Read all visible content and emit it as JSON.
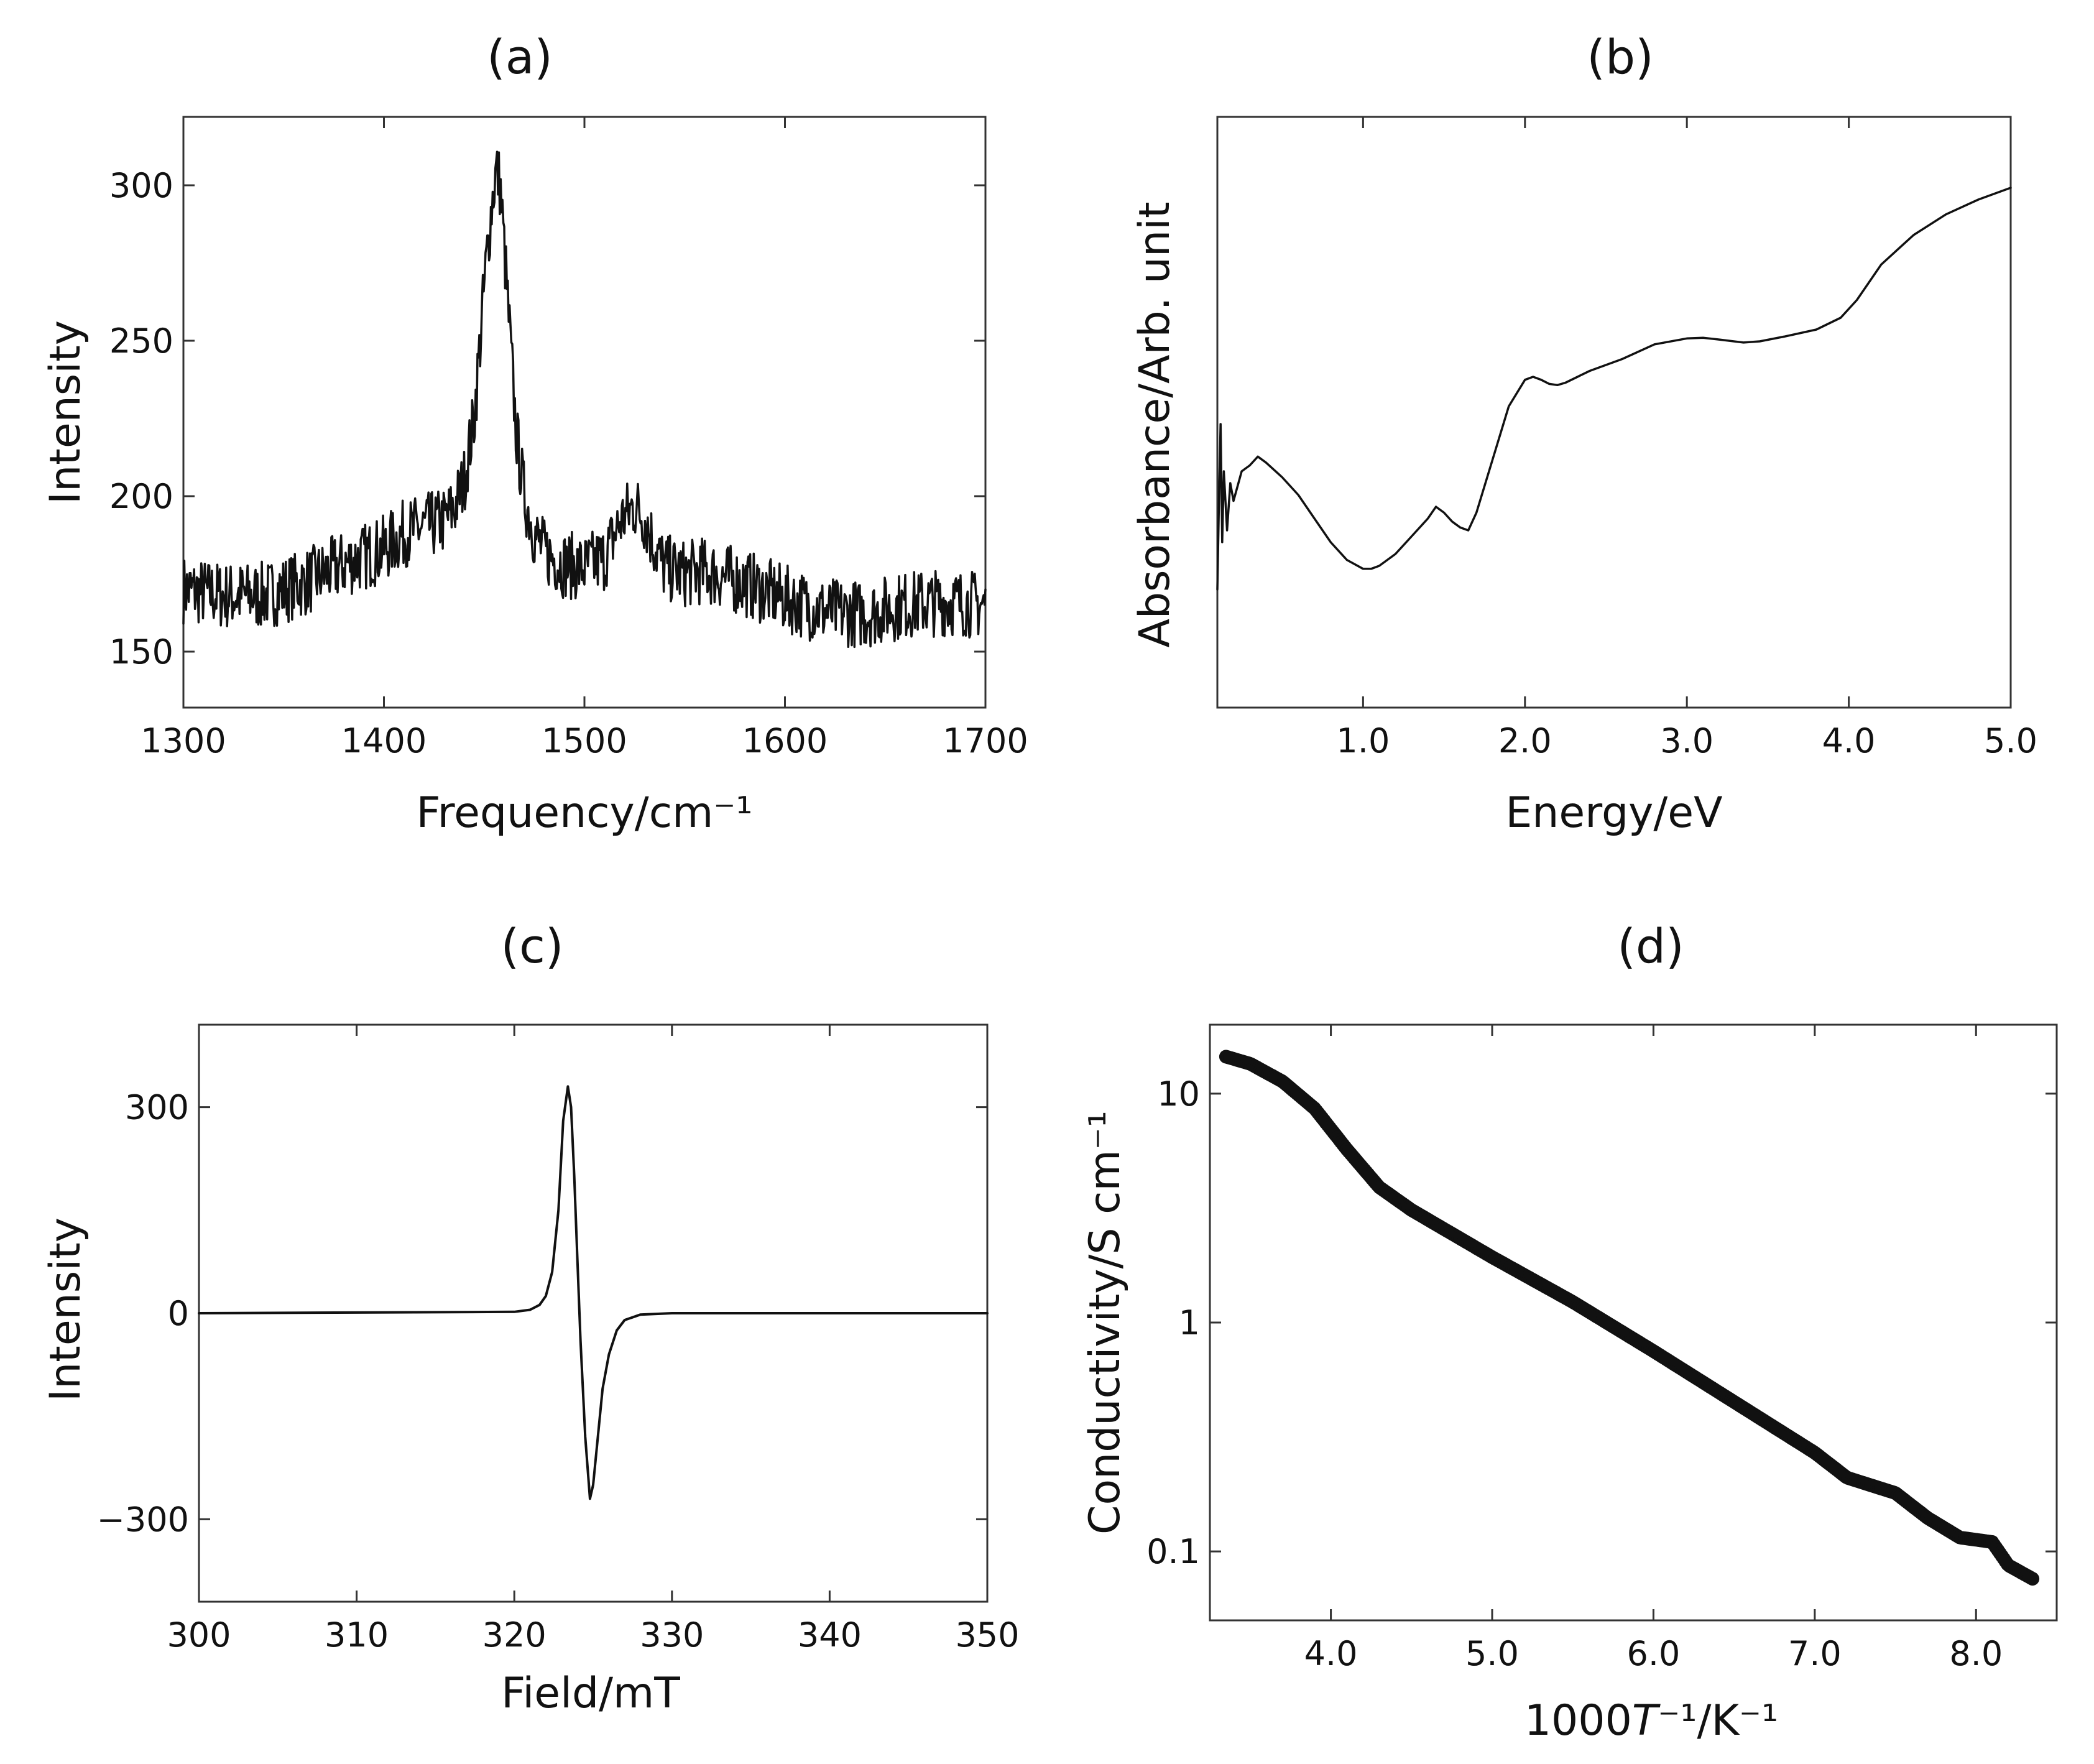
{
  "chart_data": [
    {
      "id": "a",
      "type": "line",
      "title": "(a)",
      "xlabel": "Frequency/cm⁻¹",
      "ylabel": "Intensity",
      "xlim": [
        1300,
        1700
      ],
      "ylim": [
        132,
        322
      ],
      "xticks": [
        1300,
        1400,
        1500,
        1600,
        1700
      ],
      "xtick_labels": [
        "1300",
        "1400",
        "1500",
        "1600",
        "1700"
      ],
      "yticks": [
        150,
        200,
        250,
        300
      ],
      "ytick_labels": [
        "150",
        "200",
        "250",
        "300"
      ],
      "grid": false,
      "legend": "none",
      "noise": 11,
      "series": [
        {
          "x": [
            1300,
            1320,
            1340,
            1360,
            1380,
            1400,
            1410,
            1420,
            1430,
            1435,
            1440,
            1445,
            1448,
            1451,
            1454,
            1456,
            1458,
            1460,
            1463,
            1466,
            1470,
            1475,
            1480,
            1490,
            1500,
            1510,
            1518,
            1525,
            1530,
            1535,
            1540,
            1550,
            1560,
            1580,
            1600,
            1620,
            1640,
            1660,
            1680,
            1700
          ],
          "y": [
            170,
            168,
            168,
            172,
            178,
            183,
            188,
            190,
            192,
            196,
            205,
            225,
            250,
            275,
            295,
            305,
            300,
            280,
            250,
            220,
            200,
            188,
            182,
            178,
            177,
            180,
            192,
            197,
            193,
            184,
            177,
            175,
            176,
            172,
            167,
            163,
            162,
            165,
            166,
            165
          ]
        }
      ]
    },
    {
      "id": "b",
      "type": "line",
      "title": "(b)",
      "xlabel": "Energy/eV",
      "ylabel": "Absorbance/Arb. unit",
      "xlim": [
        0.1,
        5.0
      ],
      "ylim": [
        0,
        100
      ],
      "xticks": [
        1.0,
        2.0,
        3.0,
        4.0,
        5.0
      ],
      "xtick_labels": [
        "1.0",
        "2.0",
        "3.0",
        "4.0",
        "5.0"
      ],
      "yticks": [],
      "ytick_labels": [],
      "grid": false,
      "legend": "none",
      "series": [
        {
          "x": [
            0.1,
            0.11,
            0.12,
            0.13,
            0.14,
            0.16,
            0.18,
            0.2,
            0.25,
            0.3,
            0.35,
            0.4,
            0.5,
            0.6,
            0.7,
            0.8,
            0.9,
            1.0,
            1.05,
            1.1,
            1.2,
            1.3,
            1.4,
            1.45,
            1.5,
            1.55,
            1.6,
            1.65,
            1.7,
            1.8,
            1.9,
            2.0,
            2.05,
            2.1,
            2.15,
            2.2,
            2.25,
            2.4,
            2.6,
            2.8,
            3.0,
            3.1,
            3.2,
            3.35,
            3.45,
            3.6,
            3.8,
            3.95,
            4.05,
            4.2,
            4.4,
            4.6,
            4.8,
            5.0
          ],
          "y": [
            20,
            35,
            48,
            28,
            40,
            30,
            38,
            35,
            40,
            41,
            42.5,
            41.5,
            39,
            36,
            32,
            28,
            25,
            23.5,
            23.5,
            24,
            26,
            29,
            32,
            34,
            33,
            31.5,
            30.5,
            30,
            33,
            42,
            51,
            55.5,
            56,
            55.5,
            54.8,
            54.6,
            55,
            57,
            59,
            61.5,
            62.5,
            62.6,
            62.3,
            61.8,
            62,
            62.8,
            64,
            66,
            69,
            75,
            80,
            83.5,
            86,
            88
          ]
        }
      ]
    },
    {
      "id": "c",
      "type": "line",
      "title": "(c)",
      "xlabel": "Field/mT",
      "ylabel": "Intensity",
      "xlim": [
        300,
        350
      ],
      "ylim": [
        -420,
        420
      ],
      "xticks": [
        300,
        310,
        320,
        330,
        340,
        350
      ],
      "xtick_labels": [
        "300",
        "310",
        "320",
        "330",
        "340",
        "350"
      ],
      "yticks": [
        -300,
        0,
        300
      ],
      "ytick_labels": [
        "−300",
        "0",
        "300"
      ],
      "grid": false,
      "legend": "none",
      "series": [
        {
          "x": [
            300,
            320,
            321,
            321.6,
            322,
            322.4,
            322.8,
            323.1,
            323.4,
            323.6,
            323.8,
            324.0,
            324.2,
            324.5,
            324.8,
            325.0,
            325.3,
            325.6,
            326.0,
            326.5,
            327,
            328,
            330,
            350
          ],
          "y": [
            0,
            2,
            5,
            12,
            25,
            60,
            150,
            280,
            330,
            300,
            200,
            80,
            -40,
            -180,
            -270,
            -250,
            -180,
            -110,
            -60,
            -25,
            -10,
            -2,
            0,
            0
          ]
        }
      ]
    },
    {
      "id": "d",
      "type": "scatter",
      "title": "(d)",
      "xlabel": "1000T⁻¹/K⁻¹",
      "ylabel": "Conductivity/S cm⁻¹",
      "xlim": [
        3.25,
        8.5
      ],
      "ylim": [
        0.05,
        20
      ],
      "yscale": "log",
      "xticks": [
        4.0,
        5.0,
        6.0,
        7.0,
        8.0
      ],
      "xtick_labels": [
        "4.0",
        "5.0",
        "6.0",
        "7.0",
        "8.0"
      ],
      "yticks": [
        0.1,
        1,
        10
      ],
      "ytick_labels": [
        "0.1",
        "1",
        "10"
      ],
      "grid": false,
      "legend": "none",
      "series": [
        {
          "x": [
            3.35,
            3.5,
            3.7,
            3.9,
            4.1,
            4.3,
            4.5,
            5.0,
            5.5,
            6.0,
            6.5,
            7.0,
            7.2,
            7.5,
            7.7,
            7.9,
            8.1,
            8.2,
            8.35
          ],
          "y": [
            14.5,
            13.5,
            11.3,
            8.6,
            5.7,
            3.9,
            3.1,
            1.93,
            1.23,
            0.75,
            0.45,
            0.27,
            0.21,
            0.18,
            0.14,
            0.115,
            0.11,
            0.087,
            0.076
          ]
        }
      ]
    }
  ]
}
